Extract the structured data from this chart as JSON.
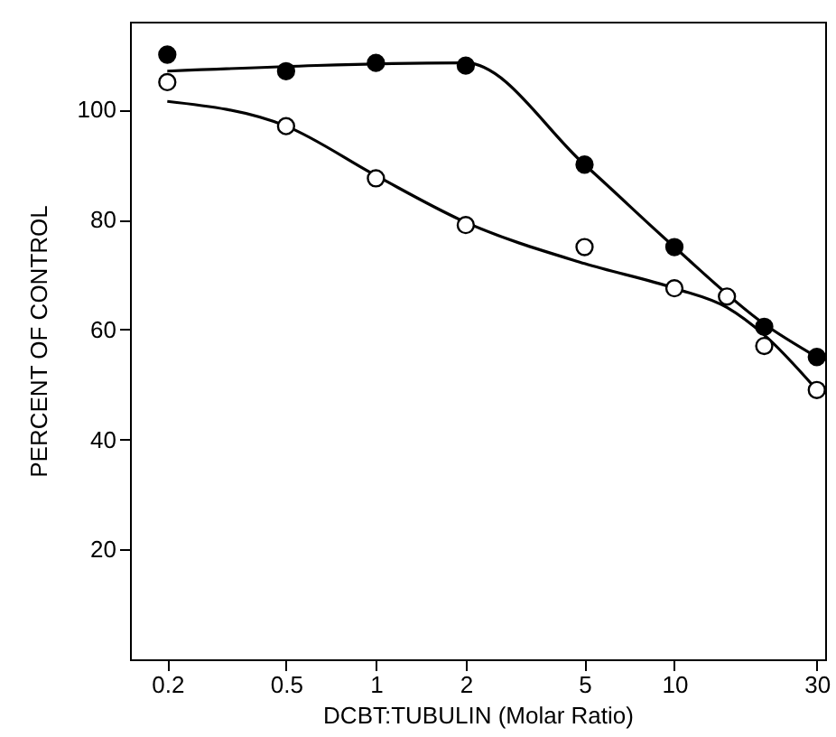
{
  "chart_data": {
    "type": "scatter",
    "xlabel": "DCBT:TUBULIN (Molar Ratio)",
    "ylabel": "PERCENT OF CONTROL",
    "log": "x",
    "grid": false,
    "marker": "circle",
    "xlim": [
      0.15,
      32
    ],
    "xticks": [
      0.2,
      0.5,
      1,
      2,
      5,
      10,
      30
    ],
    "ylim": [
      0,
      116
    ],
    "yticks": [
      20,
      40,
      60,
      80,
      100
    ],
    "series": [
      {
        "color": "#000000",
        "x": [
          0.2,
          0.5,
          1,
          2,
          5,
          10,
          20,
          30
        ],
        "values": [
          110,
          107,
          108.5,
          108,
          90,
          75,
          60.5,
          55
        ]
      },
      {
        "color": "#ffffff",
        "x": [
          0.2,
          0.5,
          1,
          2,
          5,
          10,
          15,
          20,
          30
        ],
        "values": [
          105,
          97,
          87.5,
          79,
          75,
          67.5,
          66,
          57,
          49
        ]
      },
      {
        "type": "line",
        "color": "#000000",
        "marker": "none",
        "x": [
          0.2,
          2,
          5,
          10,
          20,
          30
        ],
        "values": [
          107,
          108.5,
          90,
          75,
          61,
          55
        ]
      },
      {
        "type": "line",
        "color": "#000000",
        "marker": "none",
        "x": [
          0.2,
          0.5,
          1,
          2,
          5,
          10,
          15,
          20,
          30
        ],
        "values": [
          101.5,
          97,
          88,
          79.5,
          72,
          67.5,
          64,
          59,
          49
        ]
      }
    ]
  }
}
